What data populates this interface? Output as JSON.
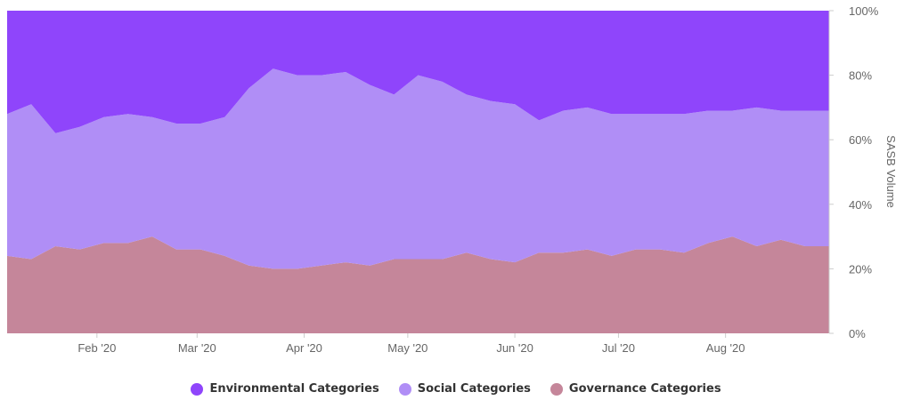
{
  "chart_data": {
    "type": "area",
    "stacking": "percent",
    "ylabel": "SASB Volume",
    "y_axis_position": "right",
    "ylim": [
      0,
      100
    ],
    "y_ticks": [
      "0%",
      "20%",
      "40%",
      "60%",
      "80%",
      "100%"
    ],
    "x_range": [
      "2020-01-06",
      "2020-08-31"
    ],
    "x_ticks": [
      {
        "label": "Feb '20",
        "date": "2020-02-01"
      },
      {
        "label": "Mar '20",
        "date": "2020-03-01"
      },
      {
        "label": "Apr '20",
        "date": "2020-04-01"
      },
      {
        "label": "May '20",
        "date": "2020-05-01"
      },
      {
        "label": "Jun '20",
        "date": "2020-06-01"
      },
      {
        "label": "Jul '20",
        "date": "2020-07-01"
      },
      {
        "label": "Aug '20",
        "date": "2020-08-01"
      }
    ],
    "x": [
      "2020-01-06",
      "2020-01-13",
      "2020-01-20",
      "2020-01-27",
      "2020-02-03",
      "2020-02-10",
      "2020-02-17",
      "2020-02-24",
      "2020-03-02",
      "2020-03-09",
      "2020-03-16",
      "2020-03-23",
      "2020-03-30",
      "2020-04-06",
      "2020-04-13",
      "2020-04-20",
      "2020-04-27",
      "2020-05-04",
      "2020-05-11",
      "2020-05-18",
      "2020-05-25",
      "2020-06-01",
      "2020-06-08",
      "2020-06-15",
      "2020-06-22",
      "2020-06-29",
      "2020-07-06",
      "2020-07-13",
      "2020-07-20",
      "2020-07-27",
      "2020-08-03",
      "2020-08-10",
      "2020-08-17",
      "2020-08-24",
      "2020-08-31"
    ],
    "series": [
      {
        "name": "Governance Categories",
        "color": "#c5869a",
        "values": [
          24,
          23,
          27,
          26,
          28,
          28,
          30,
          26,
          26,
          24,
          21,
          20,
          20,
          21,
          22,
          21,
          23,
          23,
          23,
          25,
          23,
          22,
          25,
          25,
          26,
          24,
          26,
          26,
          25,
          28,
          30,
          27,
          29,
          27,
          27
        ]
      },
      {
        "name": "Social Categories",
        "color": "#b08ef6",
        "values": [
          44,
          48,
          35,
          38,
          39,
          40,
          37,
          39,
          39,
          43,
          55,
          62,
          60,
          59,
          59,
          56,
          51,
          57,
          55,
          49,
          49,
          49,
          41,
          44,
          44,
          44,
          42,
          42,
          43,
          41,
          39,
          43,
          40,
          42,
          42
        ]
      },
      {
        "name": "Environmental Categories",
        "color": "#8f45fb",
        "values": [
          32,
          29,
          38,
          36,
          33,
          32,
          33,
          35,
          35,
          33,
          24,
          18,
          20,
          20,
          19,
          23,
          26,
          20,
          22,
          26,
          28,
          29,
          34,
          31,
          30,
          32,
          32,
          32,
          32,
          31,
          31,
          30,
          31,
          31,
          31
        ]
      }
    ],
    "legend": {
      "position": "bottom",
      "entries": [
        {
          "label": "Environmental Categories",
          "color": "#8f45fb"
        },
        {
          "label": "Social Categories",
          "color": "#b08ef6"
        },
        {
          "label": "Governance Categories",
          "color": "#c5869a"
        }
      ]
    },
    "grid": false
  }
}
